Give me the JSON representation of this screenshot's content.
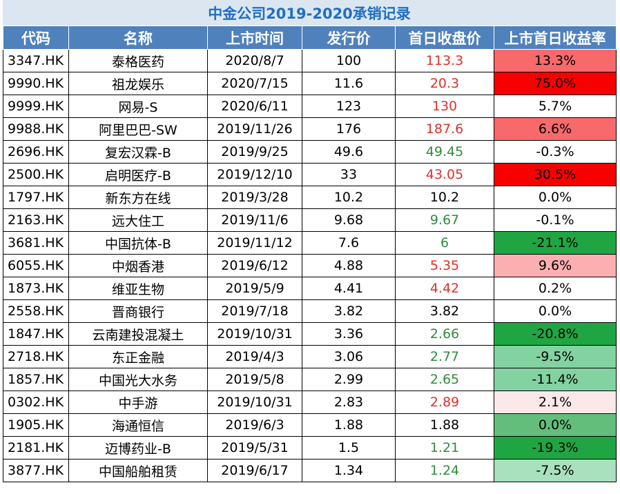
{
  "title": "中金公司2019-2020承销记录",
  "headers": [
    "代码",
    "名称",
    "上市时间",
    "发行价",
    "首日收盘价",
    "上市首日收益率"
  ],
  "colors": {
    "title_bg": "#dce6f1",
    "title_text": "#1f6fc2",
    "header_bg": "#4f81bd",
    "price_up": "#e0302a",
    "price_down": "#2e8b3a"
  },
  "rows": [
    {
      "code": "3347.HK",
      "name": "泰格医药",
      "date": "2020/8/7",
      "issue": "100",
      "close": "113.3",
      "trend": "up",
      "ret": "13.3%",
      "fill": "#f8696b"
    },
    {
      "code": "9990.HK",
      "name": "祖龙娱乐",
      "date": "2020/7/15",
      "issue": "11.6",
      "close": "20.3",
      "trend": "up",
      "ret": "75.0%",
      "fill": "#f80000"
    },
    {
      "code": "9999.HK",
      "name": "网易-S",
      "date": "2020/6/11",
      "issue": "123",
      "close": "130",
      "trend": "up",
      "ret": "5.7%",
      "fill": "#ffffff"
    },
    {
      "code": "9988.HK",
      "name": "阿里巴巴-SW",
      "date": "2019/11/26",
      "issue": "176",
      "close": "187.6",
      "trend": "up",
      "ret": "6.6%",
      "fill": "#f8696b"
    },
    {
      "code": "2696.HK",
      "name": "复宏汉霖-B",
      "date": "2019/9/25",
      "issue": "49.6",
      "close": "49.45",
      "trend": "down",
      "ret": "-0.3%",
      "fill": "#ffffff"
    },
    {
      "code": "2500.HK",
      "name": "启明医疗-B",
      "date": "2019/12/10",
      "issue": "33",
      "close": "43.05",
      "trend": "up",
      "ret": "30.5%",
      "fill": "#f80000"
    },
    {
      "code": "1797.HK",
      "name": "新东方在线",
      "date": "2019/3/28",
      "issue": "10.2",
      "close": "10.2",
      "trend": "flat",
      "ret": "0.0%",
      "fill": "#ffffff"
    },
    {
      "code": "2163.HK",
      "name": "远大住工",
      "date": "2019/11/6",
      "issue": "9.68",
      "close": "9.67",
      "trend": "down",
      "ret": "-0.1%",
      "fill": "#ffffff"
    },
    {
      "code": "3681.HK",
      "name": "中国抗体-B",
      "date": "2019/11/12",
      "issue": "7.6",
      "close": "6",
      "trend": "down",
      "ret": "-21.1%",
      "fill": "#1fa643"
    },
    {
      "code": "6055.HK",
      "name": "中烟香港",
      "date": "2019/6/12",
      "issue": "4.88",
      "close": "5.35",
      "trend": "up",
      "ret": "9.6%",
      "fill": "#fbafb1"
    },
    {
      "code": "1873.HK",
      "name": "维亚生物",
      "date": "2019/5/9",
      "issue": "4.41",
      "close": "4.42",
      "trend": "up",
      "ret": "0.2%",
      "fill": "#ffffff"
    },
    {
      "code": "2558.HK",
      "name": "晋商银行",
      "date": "2019/7/18",
      "issue": "3.82",
      "close": "3.82",
      "trend": "flat",
      "ret": "0.0%",
      "fill": "#ffffff"
    },
    {
      "code": "1847.HK",
      "name": "云南建投混凝土",
      "date": "2019/10/31",
      "issue": "3.36",
      "close": "2.66",
      "trend": "down",
      "ret": "-20.8%",
      "fill": "#1fa643"
    },
    {
      "code": "2718.HK",
      "name": "东正金融",
      "date": "2019/4/3",
      "issue": "3.06",
      "close": "2.77",
      "trend": "down",
      "ret": "-9.5%",
      "fill": "#82d3a1"
    },
    {
      "code": "1857.HK",
      "name": "中国光大水务",
      "date": "2019/5/8",
      "issue": "2.99",
      "close": "2.65",
      "trend": "down",
      "ret": "-11.4%",
      "fill": "#82d3a1"
    },
    {
      "code": "0302.HK",
      "name": "中手游",
      "date": "2019/10/31",
      "issue": "2.83",
      "close": "2.89",
      "trend": "up",
      "ret": "2.1%",
      "fill": "#fde8e9"
    },
    {
      "code": "1905.HK",
      "name": "海通恒信",
      "date": "2019/6/3",
      "issue": "1.88",
      "close": "1.88",
      "trend": "flat",
      "ret": "0.0%",
      "fill": "#63be7b"
    },
    {
      "code": "2181.HK",
      "name": "迈博药业-B",
      "date": "2019/5/31",
      "issue": "1.5",
      "close": "1.21",
      "trend": "down",
      "ret": "-19.3%",
      "fill": "#1fa643"
    },
    {
      "code": "3877.HK",
      "name": "中国船舶租赁",
      "date": "2019/6/17",
      "issue": "1.34",
      "close": "1.24",
      "trend": "down",
      "ret": "-7.5%",
      "fill": "#a9e0bd"
    }
  ]
}
